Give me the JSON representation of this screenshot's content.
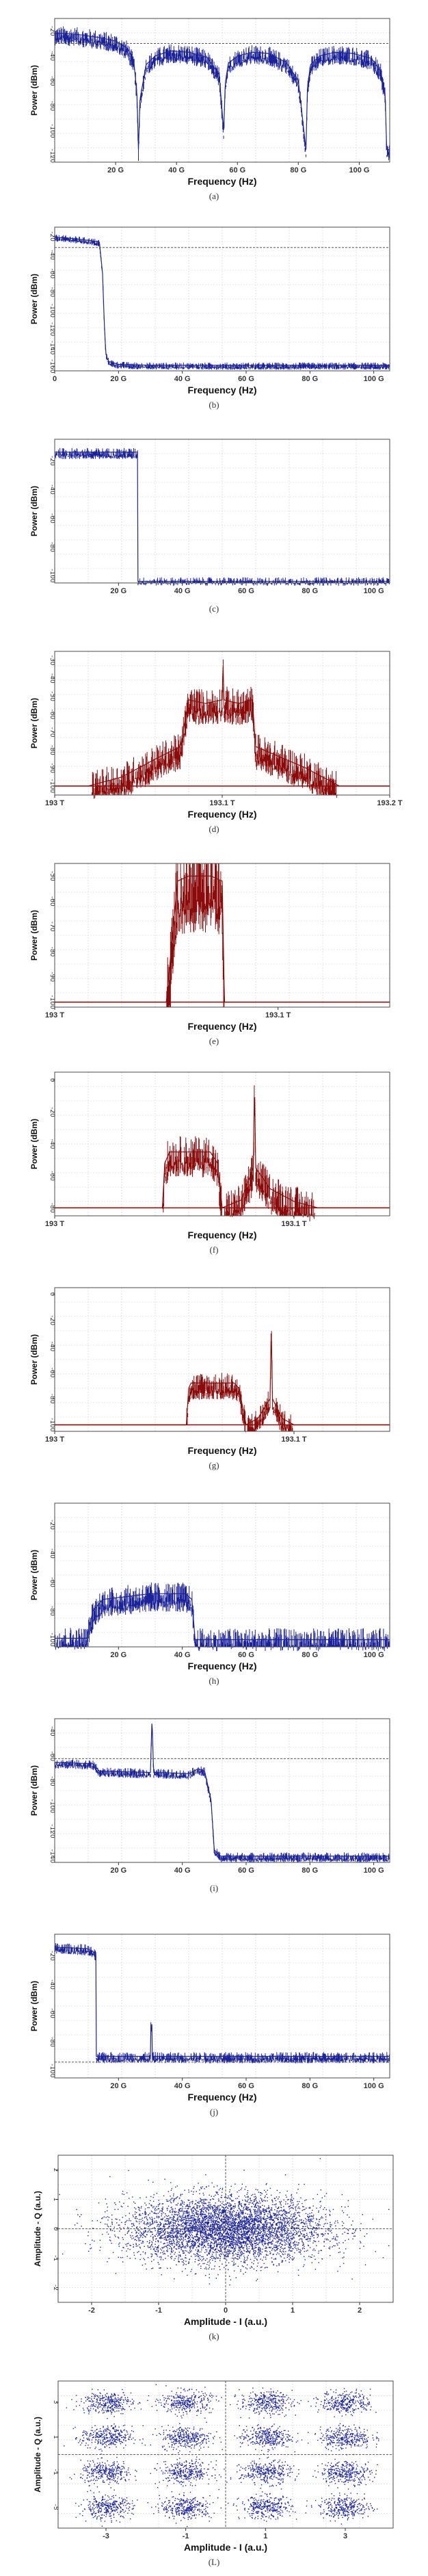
{
  "colors": {
    "blue": "#1c239a",
    "red": "#8b0a0a",
    "refline": "#555555"
  },
  "chart_data": [
    {
      "id": "a",
      "type": "line",
      "caption": "(a)",
      "xlabel": "Frequency (Hz)",
      "ylabel": "Power (dBm)",
      "color": "blue",
      "style": "blue",
      "xticks": [
        "20 G",
        "40 G",
        "60 G",
        "80 G",
        "100 G"
      ],
      "yticks": [
        "-20",
        "-40",
        "-60",
        "-80",
        "-100",
        "-120"
      ],
      "xlim": [
        0,
        110
      ],
      "ylim": [
        -125,
        -10
      ],
      "xtick_values": [
        20,
        40,
        60,
        80,
        100
      ],
      "ytick_values": [
        -20,
        -40,
        -60,
        -80,
        -100,
        -120
      ],
      "refline_y": -30,
      "envelope": {
        "x": [
          0,
          3,
          8,
          14,
          20,
          24,
          26,
          27,
          27.5,
          28,
          30,
          33,
          38,
          44,
          50,
          54,
          55.5,
          56,
          57,
          60,
          65,
          70,
          76,
          80,
          82.5,
          83,
          84,
          87,
          92,
          98,
          104,
          107,
          108.5,
          109
        ],
        "y": [
          -22,
          -22,
          -23,
          -25,
          -28,
          -34,
          -45,
          -70,
          -115,
          -75,
          -47,
          -40,
          -36,
          -37,
          -41,
          -55,
          -100,
          -62,
          -46,
          -40,
          -37,
          -38,
          -45,
          -60,
          -115,
          -65,
          -47,
          -40,
          -37,
          -38,
          -42,
          -52,
          -70,
          -115
        ]
      },
      "noise": 6
    },
    {
      "id": "b",
      "type": "line",
      "caption": "(b)",
      "xlabel": "Frequency (Hz)",
      "ylabel": "Power (dBm)",
      "color": "blue",
      "style": "blue",
      "xticks": [
        "0",
        "20 G",
        "40 G",
        "60 G",
        "80 G",
        "100 G"
      ],
      "yticks": [
        "-20",
        "-40",
        "-60",
        "-80",
        "-100",
        "-120",
        "-140",
        "-160"
      ],
      "xlim": [
        0,
        105
      ],
      "ylim": [
        -165,
        -10
      ],
      "xtick_values": [
        0,
        20,
        40,
        60,
        80,
        100
      ],
      "ytick_values": [
        -20,
        -40,
        -60,
        -80,
        -100,
        -120,
        -140,
        -160
      ],
      "refline_y": -32,
      "envelope": {
        "x": [
          0,
          5,
          10,
          14,
          15,
          15.5,
          16,
          16.5,
          17,
          20,
          30,
          50,
          80,
          100
        ],
        "y": [
          -21,
          -22,
          -24,
          -26,
          -60,
          -110,
          -145,
          -152,
          -155,
          -158,
          -159,
          -159,
          -159,
          -159
        ]
      },
      "noise": 3
    },
    {
      "id": "c",
      "type": "line",
      "caption": "(c)",
      "xlabel": "",
      "ylabel": "Power (dBm)",
      "color": "blue",
      "style": "blue",
      "xticks": [
        "20 G",
        "40 G",
        "60 G",
        "80 G",
        "100 G"
      ],
      "yticks": [
        "-20",
        "-40",
        "-60",
        "-80",
        "-100"
      ],
      "xlim": [
        0,
        105
      ],
      "ylim": [
        -105,
        -5
      ],
      "xtick_values": [
        20,
        40,
        60,
        80,
        100
      ],
      "ytick_values": [
        -20,
        -40,
        -60,
        -80,
        -100
      ],
      "envelope": {
        "x": [
          0,
          26,
          26.01,
          105
        ],
        "y": [
          -14,
          -14,
          -104,
          -104
        ]
      },
      "noise": 3
    },
    {
      "id": "d",
      "type": "line",
      "caption": "(d)",
      "xlabel": "Frequency (Hz)",
      "ylabel": "Power (dBm)",
      "color": "red",
      "style": "red",
      "xticks": [
        "193 T",
        "193.1 T",
        "193.2 T"
      ],
      "yticks": [
        "-30",
        "-40",
        "-50",
        "-60",
        "-70",
        "-80",
        "-90",
        "-100"
      ],
      "xlim": [
        193.0,
        193.2
      ],
      "ylim": [
        -105,
        -25
      ],
      "xtick_values": [
        193.0,
        193.1,
        193.2
      ],
      "ytick_values": [
        -30,
        -40,
        -50,
        -60,
        -70,
        -80,
        -90,
        -100
      ],
      "envelope": {
        "x": [
          193.0,
          193.02,
          193.04,
          193.06,
          193.075,
          193.08,
          193.09,
          193.1,
          193.1005,
          193.101,
          193.11,
          193.118,
          193.12,
          193.13,
          193.15,
          193.17,
          193.2
        ],
        "y": [
          -100,
          -100,
          -95,
          -85,
          -78,
          -52,
          -54,
          -52,
          -30,
          -52,
          -54,
          -52,
          -78,
          -82,
          -90,
          -100,
          -100
        ]
      },
      "noise": 8,
      "baseline_y": -100
    },
    {
      "id": "e",
      "type": "line",
      "caption": "(e)",
      "xlabel": "Frequency (Hz)",
      "ylabel": "Power (dBm)",
      "color": "red",
      "style": "red",
      "xticks": [
        "193 T",
        "193.1 T"
      ],
      "yticks": [
        "-50",
        "-60",
        "-70",
        "-80",
        "-90",
        "-100"
      ],
      "xlim": [
        193.0,
        193.15
      ],
      "ylim": [
        -102,
        -45
      ],
      "xtick_values": [
        193.0,
        193.1
      ],
      "ytick_values": [
        -50,
        -60,
        -70,
        -80,
        -90,
        -100
      ],
      "envelope": {
        "x": [
          193.0,
          193.05,
          193.055,
          193.06,
          193.07,
          193.075,
          193.076,
          193.15
        ],
        "y": [
          -100,
          -100,
          -52,
          -50,
          -50,
          -52,
          -100,
          -100
        ]
      },
      "noise": 14,
      "baseline_y": -100
    },
    {
      "id": "f",
      "type": "line",
      "caption": "(f)",
      "xlabel": "Frequency (Hz)",
      "ylabel": "Power (dBm)",
      "color": "red",
      "style": "red",
      "xticks": [
        "193 T",
        "193.1 T"
      ],
      "yticks": [
        "0",
        "-20",
        "-40",
        "-60",
        "-80"
      ],
      "xlim": [
        193.0,
        193.14
      ],
      "ylim": [
        -85,
        5
      ],
      "xtick_values": [
        193.0,
        193.1
      ],
      "ytick_values": [
        0,
        -20,
        -40,
        -60,
        -80
      ],
      "envelope": {
        "x": [
          193.0,
          193.045,
          193.046,
          193.048,
          193.065,
          193.068,
          193.07,
          193.078,
          193.083,
          193.0835,
          193.084,
          193.09,
          193.1,
          193.11,
          193.14
        ],
        "y": [
          -80,
          -80,
          -52,
          -45,
          -45,
          -52,
          -80,
          -75,
          -55,
          0,
          -55,
          -68,
          -76,
          -80,
          -80
        ]
      },
      "noise": 10,
      "baseline_y": -80
    },
    {
      "id": "g",
      "type": "line",
      "caption": "(g)",
      "xlabel": "Frequency (Hz)",
      "ylabel": "Power (dBm)",
      "color": "red",
      "style": "red",
      "xticks": [
        "193 T",
        "193.1 T"
      ],
      "yticks": [
        "0",
        "-20",
        "-40",
        "-60",
        "-80",
        "-100"
      ],
      "xlim": [
        193.0,
        193.14
      ],
      "ylim": [
        -105,
        5
      ],
      "xtick_values": [
        193.0,
        193.1
      ],
      "ytick_values": [
        0,
        -20,
        -40,
        -60,
        -80,
        -100
      ],
      "envelope": {
        "x": [
          193.0,
          193.055,
          193.056,
          193.057,
          193.075,
          193.077,
          193.08,
          193.085,
          193.09,
          193.0905,
          193.091,
          193.095,
          193.1,
          193.14
        ],
        "y": [
          -100,
          -100,
          -72,
          -68,
          -68,
          -72,
          -100,
          -95,
          -80,
          -25,
          -80,
          -95,
          -100,
          -100
        ]
      },
      "noise": 8,
      "baseline_y": -100
    },
    {
      "id": "h",
      "type": "line",
      "caption": "(h)",
      "xlabel": "Frequency (Hz)",
      "ylabel": "Power (dBm)",
      "color": "blue",
      "style": "blue",
      "xticks": [
        "20 G",
        "40 G",
        "60 G",
        "80 G",
        "100 G"
      ],
      "yticks": [
        "-20",
        "-40",
        "-60",
        "-80",
        "-100"
      ],
      "xlim": [
        0,
        105
      ],
      "ylim": [
        -105,
        -5
      ],
      "xtick_values": [
        20,
        40,
        60,
        80,
        100
      ],
      "ytick_values": [
        -20,
        -40,
        -60,
        -80,
        -100
      ],
      "envelope": {
        "x": [
          0,
          10,
          12,
          15,
          30,
          41,
          43,
          44,
          105
        ],
        "y": [
          -99,
          -99,
          -80,
          -72,
          -68,
          -68,
          -72,
          -100,
          -100
        ]
      },
      "noise": 8
    },
    {
      "id": "i",
      "type": "line",
      "caption": "(i)",
      "xlabel": "",
      "ylabel": "Power (dBm)",
      "color": "blue",
      "style": "blue",
      "xticks": [
        "20 G",
        "40 G",
        "60 G",
        "80 G",
        "100 G"
      ],
      "yticks": [
        "-40",
        "-60",
        "-80",
        "-100",
        "-120",
        "-140"
      ],
      "xlim": [
        0,
        105
      ],
      "ylim": [
        -145,
        -30
      ],
      "xtick_values": [
        20,
        40,
        60,
        80,
        100
      ],
      "ytick_values": [
        -40,
        -60,
        -80,
        -100,
        -120,
        -140
      ],
      "refline_y": -62,
      "envelope": {
        "x": [
          0,
          12,
          14,
          30,
          30.5,
          31,
          31.5,
          42,
          45,
          47,
          49,
          50,
          52,
          105
        ],
        "y": [
          -65,
          -66,
          -72,
          -73,
          -30,
          -73,
          -73,
          -74,
          -70,
          -72,
          -95,
          -135,
          -140,
          -140
        ]
      },
      "noise": 3
    },
    {
      "id": "j",
      "type": "line",
      "caption": "(j)",
      "xlabel": "Frequency (Hz)",
      "ylabel": "Power (dBm)",
      "color": "blue",
      "style": "blue",
      "xticks": [
        "20 G",
        "40 G",
        "60 G",
        "80 G",
        "100 G"
      ],
      "yticks": [
        "-20",
        "-40",
        "-60",
        "-80",
        "-100"
      ],
      "xlim": [
        0,
        105
      ],
      "ylim": [
        -105,
        -5
      ],
      "xtick_values": [
        20,
        40,
        60,
        80,
        100
      ],
      "ytick_values": [
        -20,
        -40,
        -60,
        -80,
        -100
      ],
      "refline_y": -94,
      "envelope": {
        "x": [
          0,
          10,
          12,
          13,
          13.01,
          30,
          30.01,
          30.5,
          30.51,
          105
        ],
        "y": [
          -14,
          -15,
          -17,
          -20,
          -90,
          -90,
          -68,
          -68,
          -90,
          -90
        ]
      },
      "noise": 3
    },
    {
      "id": "k",
      "type": "scatter",
      "caption": "(k)",
      "xlabel": "Amplitude - I (a.u.)",
      "ylabel": "Amplitude - Q (a.u.)",
      "color": "blue",
      "style": "blue",
      "xticks": [
        "-2",
        "-1",
        "0",
        "1",
        "2"
      ],
      "yticks": [
        "2",
        "1",
        "0",
        "-1",
        "-2"
      ],
      "xlim": [
        -2.5,
        2.5
      ],
      "ylim": [
        -2.5,
        2.5
      ],
      "xtick_values": [
        -2,
        -1,
        0,
        1,
        2
      ],
      "ytick_values": [
        2,
        1,
        0,
        -1,
        -2
      ],
      "clusters": [
        [
          0,
          0
        ]
      ],
      "spread": 0.7
    },
    {
      "id": "L",
      "type": "scatter",
      "caption": "(L)",
      "xlabel": "Amplitude - I (a.u.)",
      "ylabel": "Amplitude - Q (a.u.)",
      "color": "blue",
      "style": "blue",
      "xticks": [
        "-3",
        "-1",
        "1",
        "3"
      ],
      "yticks": [
        "3",
        "1",
        "-1",
        "-3"
      ],
      "xlim": [
        -4.2,
        4.2
      ],
      "ylim": [
        -4.2,
        4.2
      ],
      "xtick_values": [
        -3,
        -1,
        1,
        3
      ],
      "ytick_values": [
        3,
        1,
        -1,
        -3
      ],
      "clusters": [
        [
          -3,
          3
        ],
        [
          -1,
          3
        ],
        [
          1,
          3
        ],
        [
          3,
          3
        ],
        [
          -3,
          1
        ],
        [
          -1,
          1
        ],
        [
          1,
          1
        ],
        [
          3,
          1
        ],
        [
          -3,
          -1
        ],
        [
          -1,
          -1
        ],
        [
          1,
          -1
        ],
        [
          3,
          -1
        ],
        [
          -3,
          -3
        ],
        [
          -1,
          -3
        ],
        [
          1,
          -3
        ],
        [
          3,
          -3
        ]
      ],
      "spread": 0.32
    }
  ]
}
